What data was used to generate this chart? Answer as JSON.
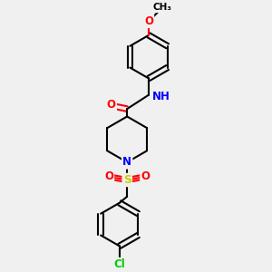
{
  "background_color": "#f0f0f0",
  "atom_colors": {
    "C": "#000000",
    "N": "#0000ff",
    "O": "#ff0000",
    "S": "#cccc00",
    "Cl": "#00cc00",
    "H": "#008080"
  },
  "figsize": [
    3.0,
    3.0
  ],
  "dpi": 100
}
